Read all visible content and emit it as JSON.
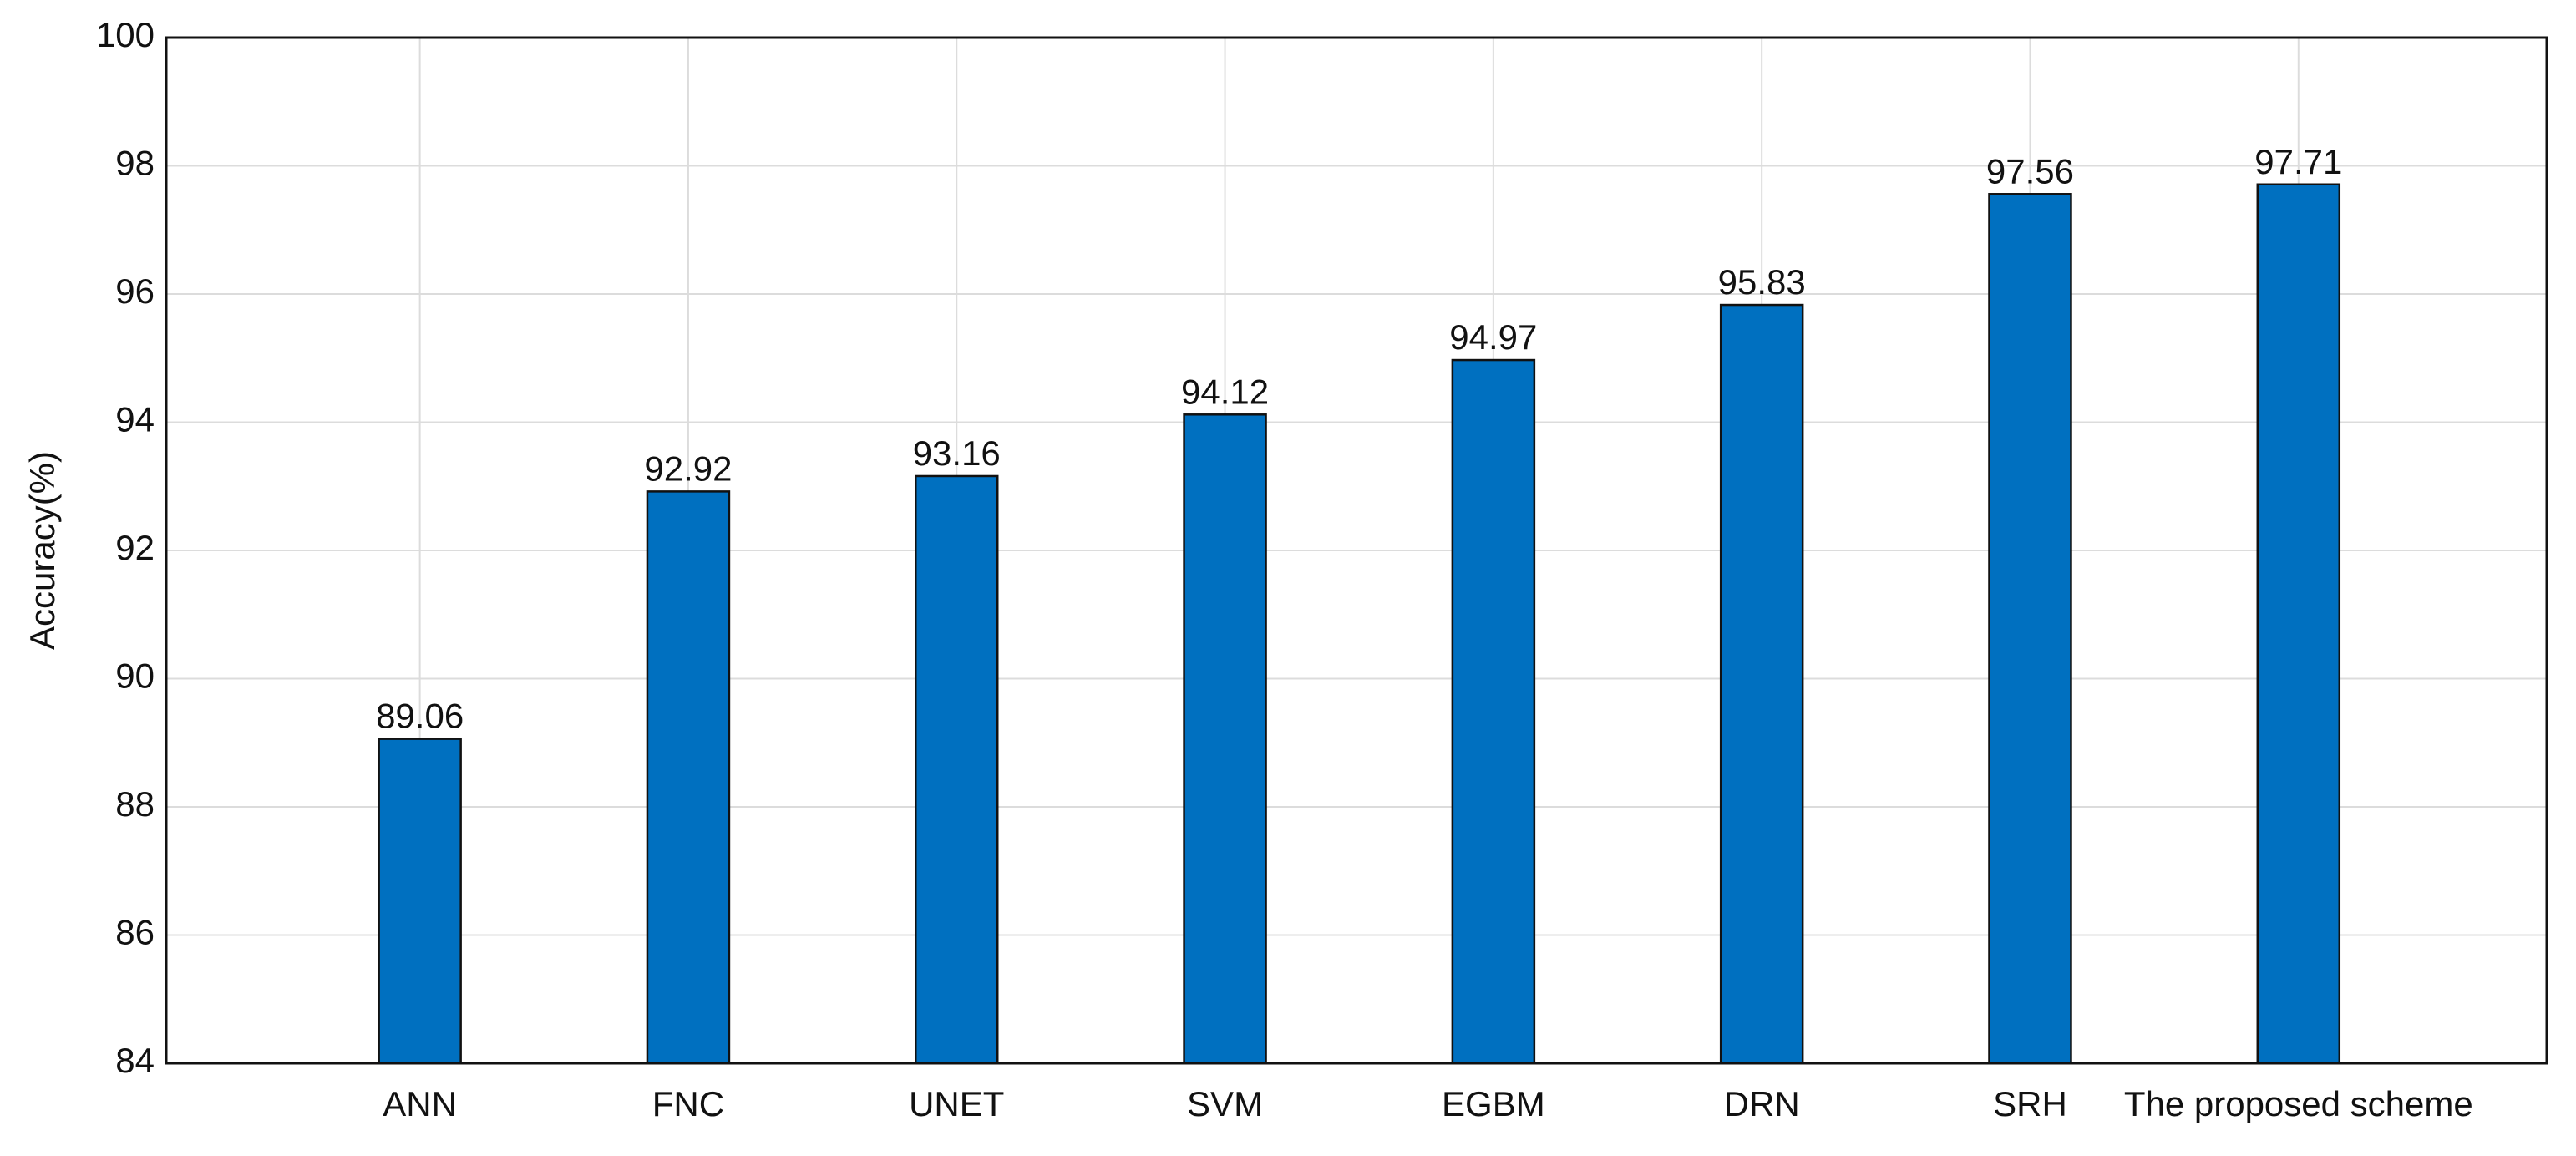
{
  "chart_data": {
    "type": "bar",
    "y_label": "Accuracy(%)",
    "categories": [
      "ANN",
      "FNC",
      "UNET",
      "SVM",
      "EGBM",
      "DRN",
      "SRH",
      "The proposed scheme"
    ],
    "values": [
      89.06,
      92.92,
      93.16,
      94.12,
      94.97,
      95.83,
      97.56,
      97.71
    ],
    "color": "#0070c0",
    "ylim": [
      84,
      100
    ],
    "yticks": [
      84,
      86,
      88,
      90,
      92,
      94,
      96,
      98,
      100
    ],
    "grid": true
  }
}
